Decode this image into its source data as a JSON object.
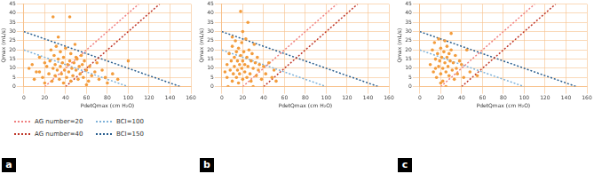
{
  "chart_data": [
    {
      "type": "scatter",
      "title": "a",
      "xlabel": "PdetQmax (cm H₂O)",
      "ylabel": "Qmax (mL/s)",
      "xlim": [
        0,
        160
      ],
      "ylim": [
        0,
        45
      ],
      "xticks": [
        0,
        20,
        40,
        60,
        80,
        100,
        120,
        140,
        160
      ],
      "yticks": [
        0,
        5,
        10,
        15,
        20,
        25,
        30,
        35,
        40,
        45
      ],
      "grid": true,
      "legend": "bottom",
      "series": [
        {
          "type": "scatter",
          "color": "#f39c3c",
          "marker": "circle",
          "x": [
            5,
            8,
            10,
            12,
            15,
            18,
            20,
            22,
            24,
            25,
            26,
            27,
            28,
            29,
            30,
            30,
            31,
            32,
            33,
            34,
            35,
            35,
            36,
            37,
            38,
            38,
            39,
            40,
            41,
            42,
            43,
            44,
            45,
            45,
            46,
            47,
            48,
            49,
            50,
            51,
            52,
            53,
            54,
            55,
            56,
            57,
            58,
            60,
            62,
            63,
            65,
            68,
            70,
            72,
            75,
            78,
            80,
            85,
            90,
            100,
            28,
            44,
            50,
            20,
            15,
            33,
            60
          ],
          "values": [
            10,
            12,
            4,
            8,
            16,
            5,
            2,
            11,
            7,
            14,
            20,
            3,
            10,
            17,
            6,
            12,
            22,
            9,
            15,
            4,
            11,
            19,
            7,
            13,
            2,
            16,
            9,
            21,
            5,
            12,
            8,
            14,
            3,
            18,
            10,
            6,
            13,
            23,
            9,
            15,
            4,
            11,
            7,
            17,
            12,
            5,
            14,
            9,
            3,
            11,
            6,
            8,
            13,
            4,
            9,
            5,
            2,
            7,
            4,
            14,
            38,
            38,
            16,
            13,
            8,
            27,
            1
          ]
        },
        {
          "type": "line",
          "name": "AG number=20",
          "color": "#f08080",
          "line_style": "dotted",
          "x": [
            20,
            110
          ],
          "values": [
            0,
            45
          ]
        },
        {
          "type": "line",
          "name": "AG number=40",
          "color": "#c0392b",
          "line_style": "dotted",
          "x": [
            40,
            130
          ],
          "values": [
            0,
            45
          ]
        },
        {
          "type": "line",
          "name": "BCI=100",
          "color": "#7fb2d9",
          "line_style": "dotted",
          "x": [
            0,
            100
          ],
          "values": [
            20,
            0
          ]
        },
        {
          "type": "line",
          "name": "BCI=150",
          "color": "#2a5f8f",
          "line_style": "dotted",
          "x": [
            0,
            150
          ],
          "values": [
            30,
            0
          ]
        }
      ]
    },
    {
      "type": "scatter",
      "title": "b",
      "xlabel": "PdetQmax (cm H₂O)",
      "ylabel": "Qmax (mL/s)",
      "xlim": [
        0,
        160
      ],
      "ylim": [
        0,
        45
      ],
      "xticks": [
        0,
        20,
        40,
        60,
        80,
        100,
        120,
        140,
        160
      ],
      "yticks": [
        0,
        5,
        10,
        15,
        20,
        25,
        30,
        35,
        40,
        45
      ],
      "grid": true,
      "series": [
        {
          "type": "scatter",
          "color": "#f39c3c",
          "marker": "circle",
          "x": [
            5,
            5,
            7,
            8,
            9,
            10,
            10,
            11,
            12,
            12,
            13,
            14,
            14,
            15,
            15,
            16,
            16,
            17,
            17,
            18,
            18,
            19,
            19,
            20,
            20,
            21,
            22,
            22,
            23,
            24,
            24,
            25,
            26,
            27,
            28,
            28,
            29,
            30,
            31,
            32,
            33,
            34,
            35,
            36,
            38,
            40,
            42,
            45,
            48,
            50,
            10,
            20,
            6,
            30,
            52,
            3,
            25
          ],
          "values": [
            12,
            5,
            18,
            9,
            14,
            3,
            22,
            7,
            16,
            11,
            25,
            5,
            19,
            9,
            14,
            2,
            21,
            12,
            7,
            41,
            17,
            10,
            24,
            4,
            14,
            19,
            8,
            12,
            26,
            16,
            5,
            11,
            20,
            7,
            14,
            3,
            18,
            10,
            23,
            13,
            6,
            16,
            9,
            12,
            4,
            11,
            7,
            13,
            5,
            9,
            27,
            30,
            0,
            0,
            3,
            8,
            35
          ]
        },
        {
          "type": "line",
          "color": "#f08080",
          "line_style": "dotted",
          "x": [
            20,
            110
          ],
          "values": [
            0,
            45
          ]
        },
        {
          "type": "line",
          "color": "#c0392b",
          "line_style": "dotted",
          "x": [
            40,
            130
          ],
          "values": [
            0,
            45
          ]
        },
        {
          "type": "line",
          "color": "#7fb2d9",
          "line_style": "dotted",
          "x": [
            0,
            100
          ],
          "values": [
            20,
            0
          ]
        },
        {
          "type": "line",
          "color": "#2a5f8f",
          "line_style": "dotted",
          "x": [
            0,
            150
          ],
          "values": [
            30,
            0
          ]
        }
      ]
    },
    {
      "type": "scatter",
      "title": "c",
      "xlabel": "PdetQmax (cm H₂O)",
      "ylabel": "Qmax (mL/s)",
      "xlim": [
        0,
        160
      ],
      "ylim": [
        0,
        45
      ],
      "xticks": [
        0,
        20,
        40,
        60,
        80,
        100,
        120,
        140,
        160
      ],
      "yticks": [
        0,
        5,
        10,
        15,
        20,
        25,
        30,
        35,
        40,
        45
      ],
      "grid": true,
      "series": [
        {
          "type": "scatter",
          "color": "#f39c3c",
          "marker": "circle",
          "x": [
            10,
            12,
            13,
            14,
            15,
            16,
            17,
            18,
            18,
            19,
            20,
            20,
            21,
            22,
            22,
            23,
            24,
            24,
            25,
            26,
            26,
            27,
            28,
            28,
            29,
            30,
            31,
            32,
            33,
            34,
            35,
            36,
            38,
            40,
            42,
            45,
            48,
            55,
            30,
            20,
            15,
            25
          ],
          "values": [
            12,
            20,
            8,
            24,
            15,
            5,
            18,
            11,
            26,
            14,
            7,
            21,
            16,
            10,
            3,
            19,
            13,
            25,
            8,
            16,
            22,
            11,
            6,
            18,
            14,
            20,
            9,
            13,
            4,
            17,
            10,
            7,
            14,
            12,
            5,
            20,
            8,
            6,
            29,
            2,
            10,
            0
          ]
        },
        {
          "type": "line",
          "color": "#f08080",
          "line_style": "dotted",
          "x": [
            20,
            110
          ],
          "values": [
            0,
            45
          ]
        },
        {
          "type": "line",
          "color": "#c0392b",
          "line_style": "dotted",
          "x": [
            40,
            130
          ],
          "values": [
            0,
            45
          ]
        },
        {
          "type": "line",
          "color": "#7fb2d9",
          "line_style": "dotted",
          "x": [
            0,
            100
          ],
          "values": [
            20,
            0
          ]
        },
        {
          "type": "line",
          "color": "#2a5f8f",
          "line_style": "dotted",
          "x": [
            0,
            150
          ],
          "values": [
            30,
            0
          ]
        }
      ]
    }
  ]
}
